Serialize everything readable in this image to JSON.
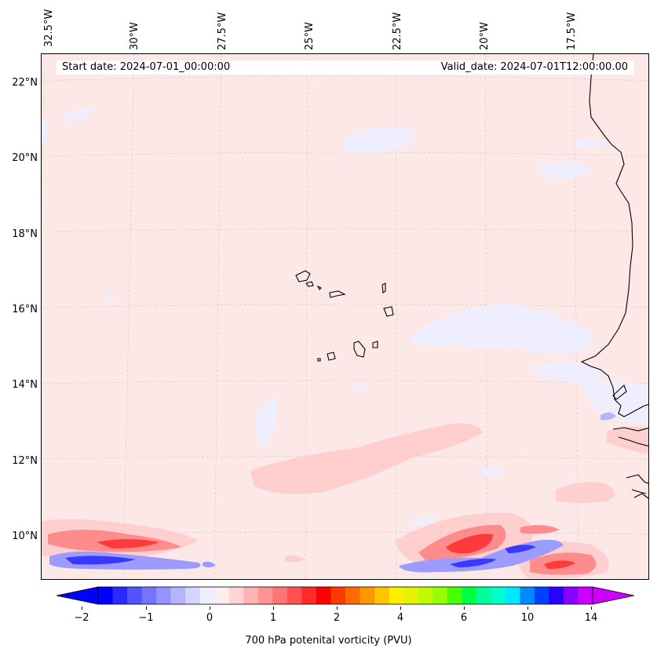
{
  "map": {
    "start_date": "Start date: 2024-07-01_00:00:00",
    "valid_date": "Valid_date: 2024-07-01T12:00:00.00",
    "longitude_labels": [
      "32.5°W",
      "30°W",
      "27.5°W",
      "25°W",
      "22.5°W",
      "20°W",
      "17.5°W"
    ],
    "latitude_labels": [
      "22°N",
      "20°N",
      "18°N",
      "16°N",
      "14°N",
      "12°N",
      "10°N"
    ],
    "colorbar": {
      "label": "700 hPa potenital vorticity (PVU)",
      "ticks": [
        "−2",
        "−1",
        "0",
        "1",
        "2",
        "4",
        "6",
        "10",
        "14"
      ],
      "colors": [
        "#0000ff",
        "#2a2aff",
        "#5252ff",
        "#7474ff",
        "#9494ff",
        "#b4b4ff",
        "#d4d4ff",
        "#eeeeff",
        "#ffeeee",
        "#ffd4d4",
        "#ffb4b4",
        "#ff9494",
        "#ff7474",
        "#ff5252",
        "#ff2a2a",
        "#ff0000",
        "#ff3a00",
        "#ff6a00",
        "#ff9800",
        "#ffc400",
        "#ffee00",
        "#e4f400",
        "#c0fa00",
        "#96ff00",
        "#4cff00",
        "#00ff44",
        "#00ff9a",
        "#00ffcc",
        "#00e8ff",
        "#0088ff",
        "#0040ff",
        "#2a00ff",
        "#8800ff",
        "#cc00ff"
      ],
      "extend_low_color": "#0000ff",
      "extend_high_color": "#cc00ff"
    },
    "background_color": "#fde8e8"
  }
}
